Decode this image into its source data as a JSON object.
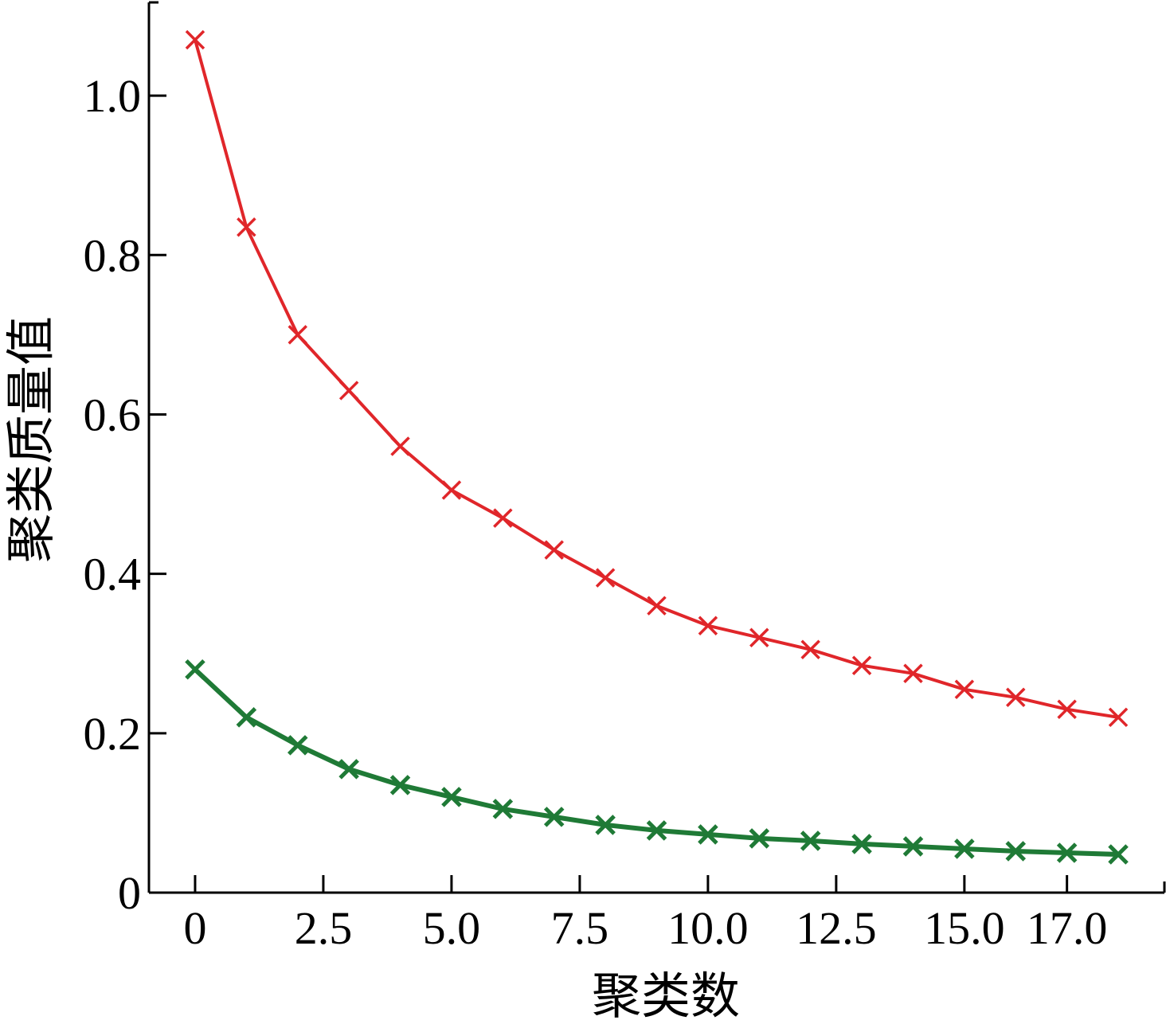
{
  "chart_data": {
    "type": "line",
    "title": "",
    "xlabel": "聚类数",
    "ylabel": "聚类质量值",
    "xlim": [
      -0.9,
      18.9
    ],
    "ylim": [
      0,
      1.12
    ],
    "x_ticks": [
      0,
      2.5,
      5.0,
      7.5,
      10.0,
      12.5,
      15.0,
      17.0
    ],
    "x_tick_labels": [
      "0",
      "2.5",
      "5.0",
      "7.5",
      "10.0",
      "12.5",
      "15.0",
      "17.0"
    ],
    "y_ticks": [
      0,
      0.2,
      0.4,
      0.6,
      0.8,
      1.0
    ],
    "y_tick_labels": [
      "0",
      "0.2",
      "0.4",
      "0.6",
      "0.8",
      "1.0"
    ],
    "grid": false,
    "legend": "none",
    "marker": "x",
    "x": [
      0,
      1,
      2,
      3,
      4,
      5,
      6,
      7,
      8,
      9,
      10,
      11,
      12,
      13,
      14,
      15,
      16,
      17,
      18
    ],
    "series": [
      {
        "color": "#e0262a",
        "values": [
          1.07,
          0.835,
          0.7,
          0.63,
          0.56,
          0.505,
          0.47,
          0.43,
          0.395,
          0.36,
          0.335,
          0.32,
          0.305,
          0.285,
          0.275,
          0.255,
          0.245,
          0.23,
          0.22
        ]
      },
      {
        "color": "#1f7a36",
        "values": [
          0.28,
          0.22,
          0.185,
          0.155,
          0.135,
          0.12,
          0.105,
          0.095,
          0.085,
          0.078,
          0.073,
          0.068,
          0.065,
          0.061,
          0.058,
          0.055,
          0.052,
          0.05,
          0.048
        ]
      }
    ]
  }
}
